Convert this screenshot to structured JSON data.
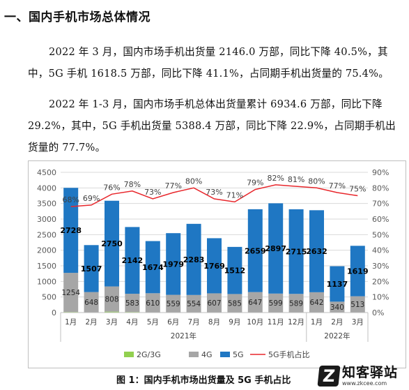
{
  "document": {
    "heading": "一、国内手机市场总体情况",
    "paragraph1": "2022 年 3 月，国内市场手机出货量 2146.0 万部，同比下降 40.5%，其中，5G 手机 1618.5 万部，同比下降 41.1%，占同期手机出货量的 75.4%。",
    "paragraph2": "2022 年 1-3 月，国内市场手机总体出货量累计 6934.6 万部，同比下降 29.2%，其中，5G 手机出货量 5388.4 万部，同比下降 22.9%，占同期手机出货量的 77.7%。",
    "caption": "图 1：国内手机市场出货量及 5G 手机占比"
  },
  "watermark": {
    "logo_glyph": "Z",
    "title": "知客驿站",
    "url": "www.zkcee.com"
  },
  "chart_data": {
    "type": "bar",
    "stacked": true,
    "categories": [
      "1月",
      "2月",
      "3月",
      "4月",
      "5月",
      "6月",
      "7月",
      "8月",
      "9月",
      "10月",
      "11月",
      "12月",
      "1月",
      "2月",
      "3月"
    ],
    "groups": [
      {
        "label": "2021年",
        "start": 0,
        "end": 11
      },
      {
        "label": "2022年",
        "start": 12,
        "end": 14
      }
    ],
    "series": [
      {
        "name": "2G/3G",
        "kind": "bar",
        "color": "#92d050",
        "values": [
          20,
          10,
          30,
          20,
          10,
          10,
          10,
          10,
          10,
          10,
          10,
          10,
          10,
          10,
          10
        ]
      },
      {
        "name": "4G",
        "kind": "bar",
        "color": "#a6a6a6",
        "values": [
          1254,
          648,
          808,
          583,
          610,
          559,
          554,
          607,
          585,
          647,
          599,
          589,
          642,
          340,
          513
        ]
      },
      {
        "name": "5G",
        "kind": "bar",
        "color": "#1f77c3",
        "values": [
          2728,
          1507,
          2750,
          2142,
          1674,
          1979,
          2283,
          1769,
          1512,
          2659,
          2897,
          2715,
          2632,
          1137,
          1619
        ]
      },
      {
        "name": "5G手机占比",
        "kind": "line",
        "axis": "right",
        "color": "#e8262b",
        "values": [
          68,
          69,
          76,
          78,
          73,
          77,
          80,
          73,
          71,
          79,
          82,
          81,
          80,
          77,
          75
        ]
      }
    ],
    "bar_labels_4g": [
      "1254",
      "648",
      "808",
      "583",
      "610",
      "559",
      "554",
      "607",
      "585",
      "647",
      "599",
      "589",
      "642",
      "340",
      "513"
    ],
    "bar_labels_5g": [
      "2728",
      "1507",
      "2750",
      "2142",
      "1674",
      "1979",
      "2283",
      "1769",
      "1512",
      "2659",
      "2897",
      "2715",
      "2632",
      "1137",
      "1619"
    ],
    "line_labels": [
      "68%",
      "69%",
      "76%",
      "78%",
      "73%",
      "77%",
      "80%",
      "73%",
      "71%",
      "79%",
      "82%",
      "81%",
      "80%",
      "77%",
      "75%"
    ],
    "y_left": {
      "min": 0,
      "max": 4500,
      "step": 500,
      "ticks": [
        "0",
        "500",
        "1000",
        "1500",
        "2000",
        "2500",
        "3000",
        "3500",
        "4000",
        "4500"
      ]
    },
    "y_right": {
      "min": 0,
      "max": 90,
      "step": 10,
      "ticks": [
        "0%",
        "10%",
        "20%",
        "30%",
        "40%",
        "50%",
        "60%",
        "70%",
        "80%",
        "90%"
      ]
    },
    "grid": true,
    "legend": {
      "position": "bottom",
      "items": [
        "2G/3G",
        "4G",
        "5G",
        "5G手机占比"
      ]
    }
  }
}
